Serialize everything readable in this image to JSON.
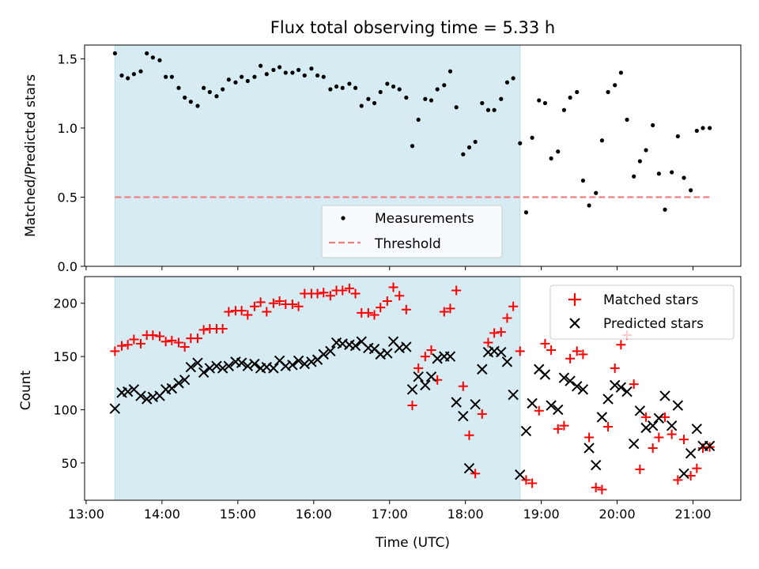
{
  "chart_data": [
    {
      "type": "scatter",
      "title": "Flux total observing time = 5.33 h",
      "xlabel": "",
      "ylabel": "Matched/Predicted stars",
      "xlim": [
        12.98,
        21.63
      ],
      "ylim": [
        0,
        1.6
      ],
      "yticks": [
        0,
        0.5,
        1.0,
        1.5
      ],
      "ytick_labels": [
        "0.0",
        "0.5",
        "1.0",
        "1.5"
      ],
      "highlight_span": [
        13.38,
        18.72
      ],
      "threshold": {
        "value": 0.5,
        "x_range": [
          13.38,
          21.25
        ],
        "color": "#f08080"
      },
      "legend": [
        "Measurements",
        "Threshold"
      ],
      "legend_position": "lower center",
      "series": [
        {
          "name": "Measurements",
          "marker": "dot",
          "color": "#000000",
          "x": [
            13.38,
            13.47,
            13.55,
            13.63,
            13.72,
            13.8,
            13.88,
            13.97,
            14.05,
            14.13,
            14.22,
            14.3,
            14.38,
            14.47,
            14.55,
            14.63,
            14.72,
            14.8,
            14.88,
            14.97,
            15.05,
            15.13,
            15.22,
            15.3,
            15.38,
            15.47,
            15.55,
            15.63,
            15.72,
            15.8,
            15.88,
            15.97,
            16.05,
            16.13,
            16.22,
            16.3,
            16.38,
            16.47,
            16.55,
            16.63,
            16.72,
            16.8,
            16.88,
            16.97,
            17.05,
            17.13,
            17.22,
            17.3,
            17.38,
            17.47,
            17.55,
            17.63,
            17.72,
            17.8,
            17.88,
            17.97,
            18.05,
            18.13,
            18.22,
            18.3,
            18.38,
            18.47,
            18.55,
            18.63,
            18.72,
            18.8,
            18.88,
            18.97,
            19.05,
            19.13,
            19.22,
            19.3,
            19.38,
            19.47,
            19.55,
            19.63,
            19.72,
            19.8,
            19.88,
            19.97,
            20.05,
            20.13,
            20.22,
            20.3,
            20.38,
            20.47,
            20.55,
            20.63,
            20.72,
            20.8,
            20.88,
            20.97,
            21.05,
            21.13,
            21.22
          ],
          "y": [
            1.54,
            1.38,
            1.36,
            1.39,
            1.41,
            1.54,
            1.51,
            1.49,
            1.37,
            1.37,
            1.29,
            1.22,
            1.19,
            1.16,
            1.29,
            1.26,
            1.23,
            1.28,
            1.35,
            1.33,
            1.37,
            1.34,
            1.37,
            1.45,
            1.39,
            1.42,
            1.44,
            1.4,
            1.4,
            1.42,
            1.38,
            1.43,
            1.38,
            1.37,
            1.28,
            1.3,
            1.29,
            1.32,
            1.29,
            1.16,
            1.21,
            1.18,
            1.26,
            1.32,
            1.3,
            1.28,
            1.22,
            0.87,
            1.06,
            1.21,
            1.2,
            1.28,
            1.31,
            1.41,
            1.15,
            0.81,
            0.86,
            0.9,
            1.18,
            1.13,
            1.13,
            1.21,
            1.33,
            1.36,
            0.89,
            0.39,
            0.93,
            1.2,
            1.18,
            0.78,
            0.83,
            1.13,
            1.22,
            1.26,
            0.62,
            0.44,
            0.53,
            0.91,
            1.26,
            1.31,
            1.4,
            1.06,
            0.65,
            0.76,
            0.84,
            1.02,
            0.67,
            0.41,
            0.68,
            0.94,
            0.64,
            0.55,
            0.98,
            1.0,
            1.0
          ]
        }
      ]
    },
    {
      "type": "scatter",
      "title": "",
      "xlabel": "Time (UTC)",
      "ylabel": "Count",
      "xlim": [
        12.98,
        21.63
      ],
      "ylim": [
        15,
        225
      ],
      "yticks": [
        50,
        100,
        150,
        200
      ],
      "ytick_labels": [
        "50",
        "100",
        "150",
        "200"
      ],
      "xticks": [
        13,
        14,
        15,
        16,
        17,
        18,
        19,
        20,
        21
      ],
      "xtick_labels": [
        "13:00",
        "14:00",
        "15:00",
        "16:00",
        "17:00",
        "18:00",
        "19:00",
        "20:00",
        "21:00"
      ],
      "highlight_span": [
        13.38,
        18.72
      ],
      "legend": [
        "Matched stars",
        "Predicted stars"
      ],
      "legend_position": "upper right",
      "series": [
        {
          "name": "Matched stars",
          "marker": "plus",
          "color": "#ff0000",
          "x": [
            13.38,
            13.47,
            13.55,
            13.63,
            13.72,
            13.8,
            13.88,
            13.97,
            14.05,
            14.13,
            14.22,
            14.3,
            14.38,
            14.47,
            14.55,
            14.63,
            14.72,
            14.8,
            14.88,
            14.97,
            15.05,
            15.13,
            15.22,
            15.3,
            15.38,
            15.47,
            15.55,
            15.63,
            15.72,
            15.8,
            15.88,
            15.97,
            16.05,
            16.13,
            16.22,
            16.3,
            16.38,
            16.47,
            16.55,
            16.63,
            16.72,
            16.8,
            16.88,
            16.97,
            17.05,
            17.13,
            17.22,
            17.3,
            17.38,
            17.47,
            17.55,
            17.63,
            17.72,
            17.8,
            17.88,
            17.97,
            18.05,
            18.13,
            18.22,
            18.3,
            18.38,
            18.47,
            18.55,
            18.63,
            18.72,
            18.8,
            18.88,
            18.97,
            19.05,
            19.13,
            19.22,
            19.3,
            19.38,
            19.47,
            19.55,
            19.63,
            19.72,
            19.8,
            19.88,
            19.97,
            20.05,
            20.13,
            20.22,
            20.3,
            20.38,
            20.47,
            20.55,
            20.63,
            20.72,
            20.8,
            20.88,
            20.97,
            21.05,
            21.13,
            21.22
          ],
          "y": [
            155,
            160,
            161,
            166,
            162,
            170,
            170,
            169,
            164,
            165,
            163,
            159,
            167,
            167,
            175,
            176,
            176,
            176,
            192,
            193,
            193,
            189,
            197,
            201,
            192,
            200,
            202,
            199,
            199,
            197,
            209,
            209,
            209,
            210,
            207,
            212,
            212,
            214,
            209,
            191,
            191,
            189,
            196,
            202,
            215,
            207,
            194,
            104,
            139,
            150,
            156,
            128,
            192,
            195,
            212,
            122,
            76,
            40,
            96,
            163,
            172,
            173,
            186,
            197,
            155,
            34,
            31,
            99,
            162,
            156,
            82,
            85,
            148,
            155,
            152,
            74,
            27,
            25,
            84,
            139,
            161,
            170,
            124,
            44,
            93,
            64,
            74,
            93,
            77,
            34,
            72,
            38,
            45,
            64,
            65
          ]
        },
        {
          "name": "Predicted stars",
          "marker": "x",
          "color": "#000000",
          "x": [
            13.38,
            13.47,
            13.55,
            13.63,
            13.72,
            13.8,
            13.88,
            13.97,
            14.05,
            14.13,
            14.22,
            14.3,
            14.38,
            14.47,
            14.55,
            14.63,
            14.72,
            14.8,
            14.88,
            14.97,
            15.05,
            15.13,
            15.22,
            15.3,
            15.38,
            15.47,
            15.55,
            15.63,
            15.72,
            15.8,
            15.88,
            15.97,
            16.05,
            16.13,
            16.22,
            16.3,
            16.38,
            16.47,
            16.55,
            16.63,
            16.72,
            16.8,
            16.88,
            16.97,
            17.05,
            17.13,
            17.22,
            17.3,
            17.38,
            17.47,
            17.55,
            17.63,
            17.72,
            17.8,
            17.88,
            17.97,
            18.05,
            18.13,
            18.22,
            18.3,
            18.38,
            18.47,
            18.55,
            18.63,
            18.72,
            18.8,
            18.88,
            18.97,
            19.05,
            19.13,
            19.22,
            19.3,
            19.38,
            19.47,
            19.55,
            19.63,
            19.72,
            19.8,
            19.88,
            19.97,
            20.05,
            20.13,
            20.22,
            20.3,
            20.38,
            20.47,
            20.55,
            20.63,
            20.72,
            20.8,
            20.88,
            20.97,
            21.05,
            21.13,
            21.22
          ],
          "y": [
            101,
            116,
            117,
            119,
            113,
            110,
            112,
            113,
            119,
            120,
            125,
            128,
            140,
            144,
            135,
            139,
            141,
            139,
            141,
            145,
            144,
            141,
            143,
            139,
            140,
            139,
            146,
            141,
            142,
            146,
            143,
            145,
            147,
            152,
            155,
            163,
            162,
            161,
            160,
            164,
            158,
            157,
            152,
            153,
            164,
            158,
            159,
            119,
            131,
            123,
            131,
            148,
            150,
            150,
            107,
            94,
            45,
            105,
            138,
            154,
            155,
            154,
            145,
            114,
            39,
            80,
            106,
            138,
            133,
            104,
            100,
            130,
            127,
            122,
            119,
            64,
            48,
            93,
            110,
            123,
            121,
            117,
            68,
            99,
            83,
            85,
            92,
            113,
            85,
            104,
            40,
            59,
            82,
            66,
            66
          ]
        }
      ]
    }
  ]
}
